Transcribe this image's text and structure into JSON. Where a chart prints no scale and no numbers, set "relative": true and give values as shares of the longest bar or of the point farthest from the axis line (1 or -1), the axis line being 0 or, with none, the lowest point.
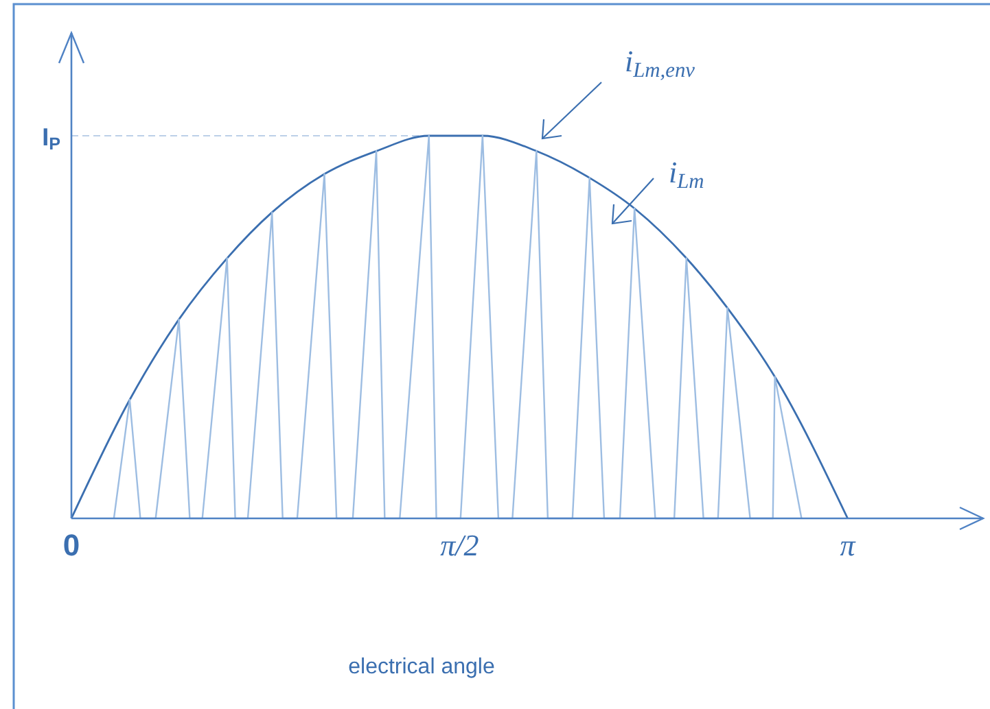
{
  "chart_data": {
    "type": "line",
    "relative": true,
    "xlabel": "electrical angle",
    "tick_labels": "x",
    "xlim": [
      0,
      3.69
    ],
    "xticks": [
      0,
      {
        "value": 1.5708,
        "label": "π/2"
      },
      {
        "value": 3.1416,
        "label": "π"
      }
    ],
    "ref_lines": [
      {
        "axis": "y",
        "value": 1,
        "label": "I$_{P}$",
        "line_style": "dashed",
        "color": "#bcd0e8"
      }
    ],
    "line_style": "solid",
    "marker": "none",
    "series": [
      {
        "name": "i$_{Lm,env}$",
        "color": "#3b6fb0",
        "x": [
          0,
          0.236,
          0.435,
          0.63,
          0.812,
          1.024,
          1.234,
          1.447,
          1.664,
          1.882,
          2.097,
          2.279,
          2.489,
          2.655,
          2.847,
          3.1416
        ],
        "values": [
          0,
          0.31,
          0.52,
          0.68,
          0.8,
          0.9,
          0.96,
          1.0,
          1.0,
          0.96,
          0.89,
          0.81,
          0.68,
          0.55,
          0.37,
          0
        ]
      },
      {
        "name": "i$_{Lm}$",
        "color": "#9dbde2",
        "x": [
          0.172,
          0.236,
          0.279,
          0.341,
          0.435,
          0.479,
          0.53,
          0.63,
          0.663,
          0.714,
          0.812,
          0.855,
          0.914,
          1.024,
          1.073,
          1.139,
          1.234,
          1.268,
          1.329,
          1.447,
          1.477,
          1.575,
          1.664,
          1.728,
          1.785,
          1.882,
          1.928,
          2.028,
          2.097,
          2.156,
          2.22,
          2.279,
          2.363,
          2.44,
          2.489,
          2.558,
          2.617,
          2.655,
          2.747,
          2.839,
          2.847,
          2.955
        ],
        "values": [
          0,
          0.31,
          0,
          0,
          0.52,
          0,
          0,
          0.68,
          0,
          0,
          0.8,
          0,
          0,
          0.9,
          0,
          0,
          0.96,
          0,
          0,
          1.0,
          0,
          0,
          1.0,
          0,
          0,
          0.96,
          0,
          0,
          0.89,
          0,
          0,
          0.81,
          0,
          0,
          0.68,
          0,
          0,
          0.55,
          0,
          0,
          0.37,
          0
        ]
      }
    ]
  }
}
